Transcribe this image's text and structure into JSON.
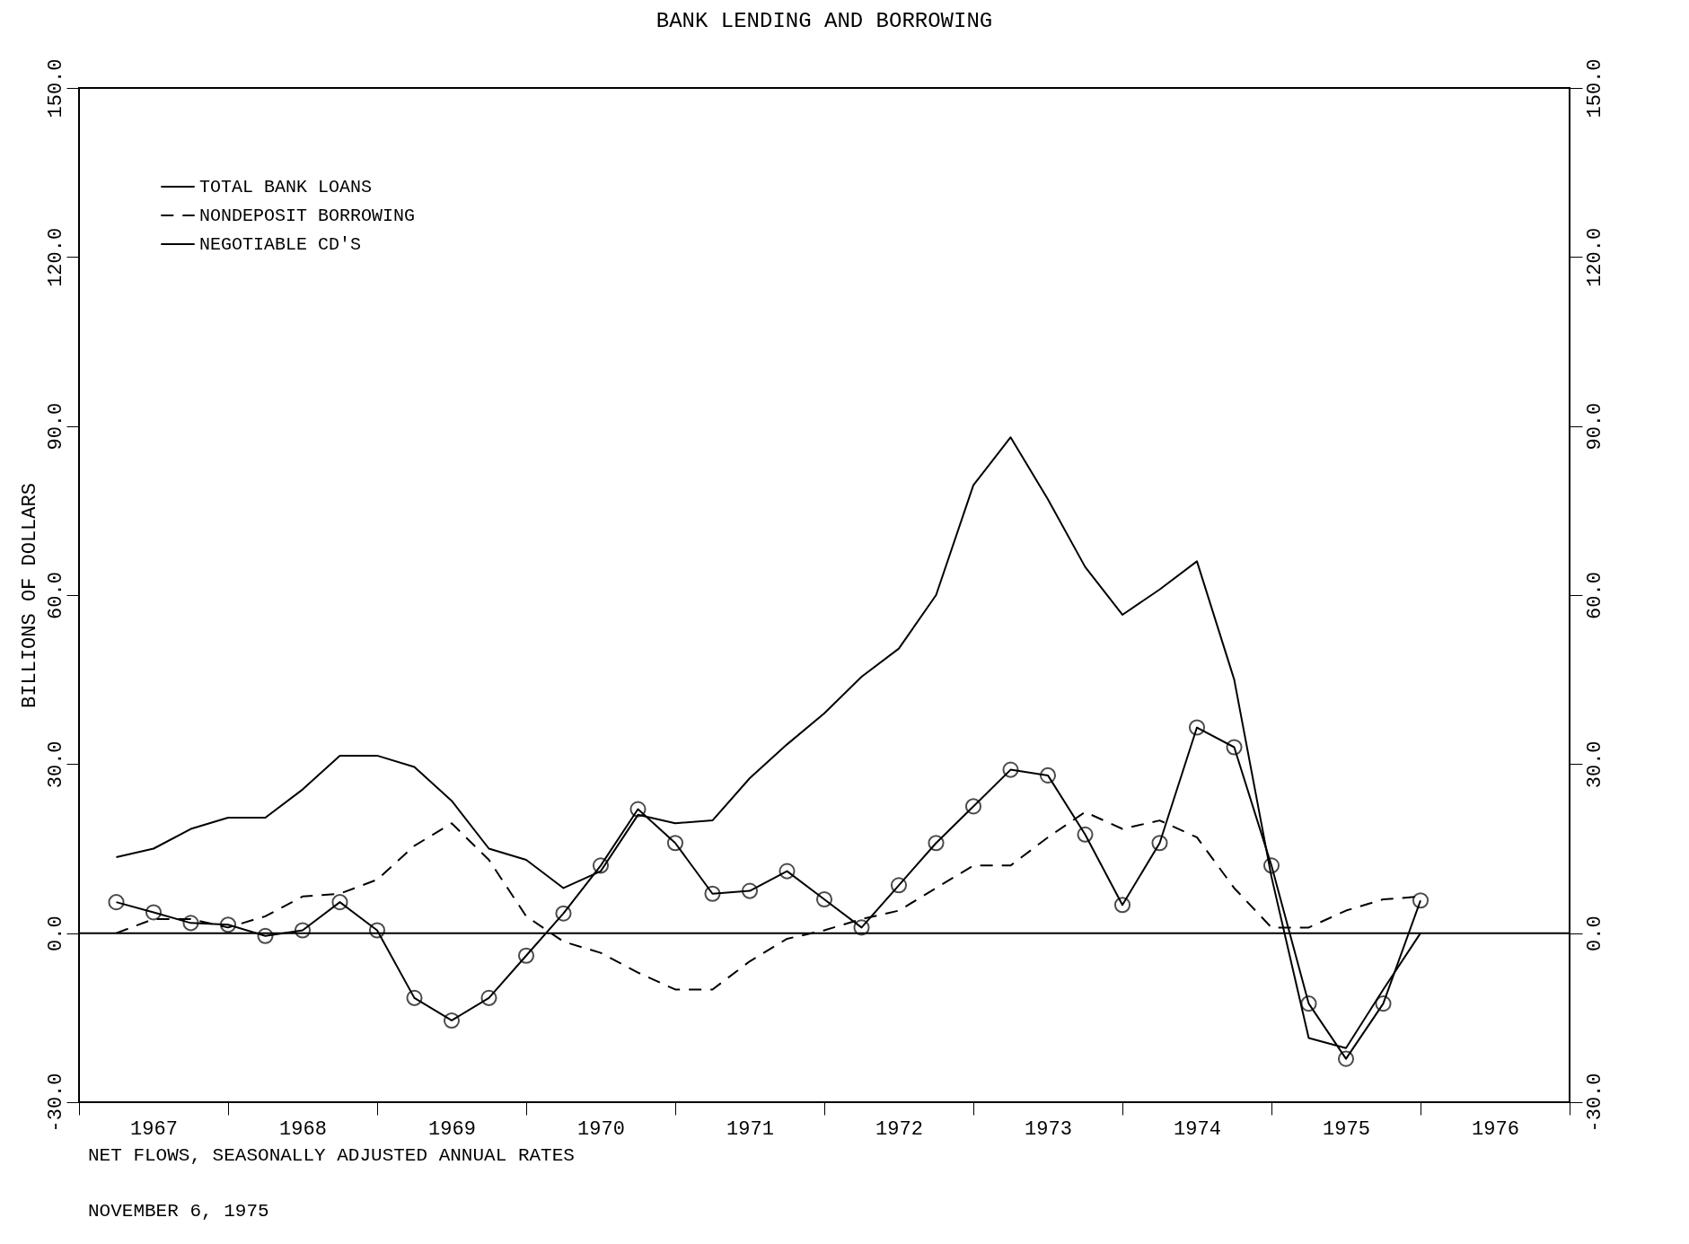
{
  "chart_data": {
    "type": "line",
    "title": "BANK LENDING AND BORROWING",
    "ylabel": "BILLIONS OF DOLLARS",
    "x": [
      1967.25,
      1967.5,
      1967.75,
      1968.0,
      1968.25,
      1968.5,
      1968.75,
      1969.0,
      1969.25,
      1969.5,
      1969.75,
      1970.0,
      1970.25,
      1970.5,
      1970.75,
      1971.0,
      1971.25,
      1971.5,
      1971.75,
      1972.0,
      1972.25,
      1972.5,
      1972.75,
      1973.0,
      1973.25,
      1973.5,
      1973.75,
      1974.0,
      1974.25,
      1974.5,
      1974.75,
      1975.0,
      1975.25,
      1975.5,
      1975.75,
      1976.0
    ],
    "series": [
      {
        "name": "TOTAL BANK LOANS",
        "color": "#000000",
        "line_style": "solid",
        "marker": "none",
        "values": [
          13.5,
          15,
          18.5,
          20.5,
          20.5,
          25.5,
          31.5,
          31.5,
          29.5,
          23.5,
          15,
          13,
          8,
          11,
          21,
          19.5,
          20,
          27.5,
          33.5,
          39,
          45.5,
          50.5,
          60,
          79.5,
          88,
          77,
          65,
          56.5,
          61,
          66,
          45,
          10,
          -18.6,
          -20.4,
          -10,
          0
        ]
      },
      {
        "name": "NONDEPOSIT BORROWING",
        "color": "#000000",
        "line_style": "dashed",
        "marker": "none",
        "values": [
          0,
          2.5,
          2.5,
          1,
          3,
          6.5,
          7,
          9.5,
          15.5,
          19.5,
          13,
          3,
          -1.5,
          -3.5,
          -7,
          -10,
          -10,
          -5,
          -1,
          0.5,
          2.5,
          4,
          8,
          12,
          12,
          17,
          21.5,
          18.5,
          20,
          17,
          8,
          1,
          1,
          4,
          6,
          6.5
        ]
      },
      {
        "name": "NEGOTIABLE CD'S",
        "color": "#000000",
        "line_style": "solid",
        "marker": "circle",
        "values": [
          5.5,
          3.7,
          1.8,
          1.5,
          -0.5,
          0.5,
          5.5,
          0.5,
          -11.5,
          -15.5,
          -11.5,
          -4,
          3.5,
          12,
          22,
          16,
          7,
          7.5,
          11,
          6,
          1,
          8.5,
          16,
          22.5,
          29,
          28,
          17.5,
          5,
          16,
          36.5,
          33,
          12,
          -12.5,
          -22.3,
          -12.5,
          5.8
        ]
      }
    ],
    "xlim": [
      1967,
      1977
    ],
    "xticks": [
      {
        "value": 1967,
        "label": null
      },
      {
        "value": 1967.5,
        "label": "1967"
      },
      {
        "value": 1968,
        "label": null
      },
      {
        "value": 1968.5,
        "label": "1968"
      },
      {
        "value": 1969,
        "label": null
      },
      {
        "value": 1969.5,
        "label": "1969"
      },
      {
        "value": 1970,
        "label": null
      },
      {
        "value": 1970.5,
        "label": "1970"
      },
      {
        "value": 1971,
        "label": null
      },
      {
        "value": 1971.5,
        "label": "1971"
      },
      {
        "value": 1972,
        "label": null
      },
      {
        "value": 1972.5,
        "label": "1972"
      },
      {
        "value": 1973,
        "label": null
      },
      {
        "value": 1973.5,
        "label": "1973"
      },
      {
        "value": 1974,
        "label": null
      },
      {
        "value": 1974.5,
        "label": "1974"
      },
      {
        "value": 1975,
        "label": null
      },
      {
        "value": 1975.5,
        "label": "1975"
      },
      {
        "value": 1976,
        "label": null
      },
      {
        "value": 1976.5,
        "label": "1976"
      },
      {
        "value": 1977,
        "label": null
      }
    ],
    "ylim": [
      -30,
      150
    ],
    "yticks": [
      {
        "value": -30,
        "label": "-30.0"
      },
      {
        "value": 0,
        "label": "0.0"
      },
      {
        "value": 30,
        "label": "30.0"
      },
      {
        "value": 60,
        "label": "60.0"
      },
      {
        "value": 90,
        "label": "90.0"
      },
      {
        "value": 120,
        "label": "120.0"
      },
      {
        "value": 150,
        "label": "150.0"
      }
    ],
    "y2lim": [
      -30,
      150
    ],
    "y2ticks": [
      {
        "value": -30,
        "label": "-30.0"
      },
      {
        "value": 0,
        "label": "0.0"
      },
      {
        "value": 30,
        "label": "30.0"
      },
      {
        "value": 60,
        "label": "60.0"
      },
      {
        "value": 90,
        "label": "90.0"
      },
      {
        "value": 120,
        "label": "120.0"
      },
      {
        "value": 150,
        "label": "150.0"
      }
    ],
    "ref_lines": [
      {
        "axis": "y",
        "value": 0,
        "color": "#000000",
        "line_style": "solid"
      }
    ],
    "annotations": [
      "NET FLOWS, SEASONALLY ADJUSTED ANNUAL RATES",
      "NOVEMBER 6, 1975"
    ],
    "legend": "top left",
    "grid": false
  }
}
